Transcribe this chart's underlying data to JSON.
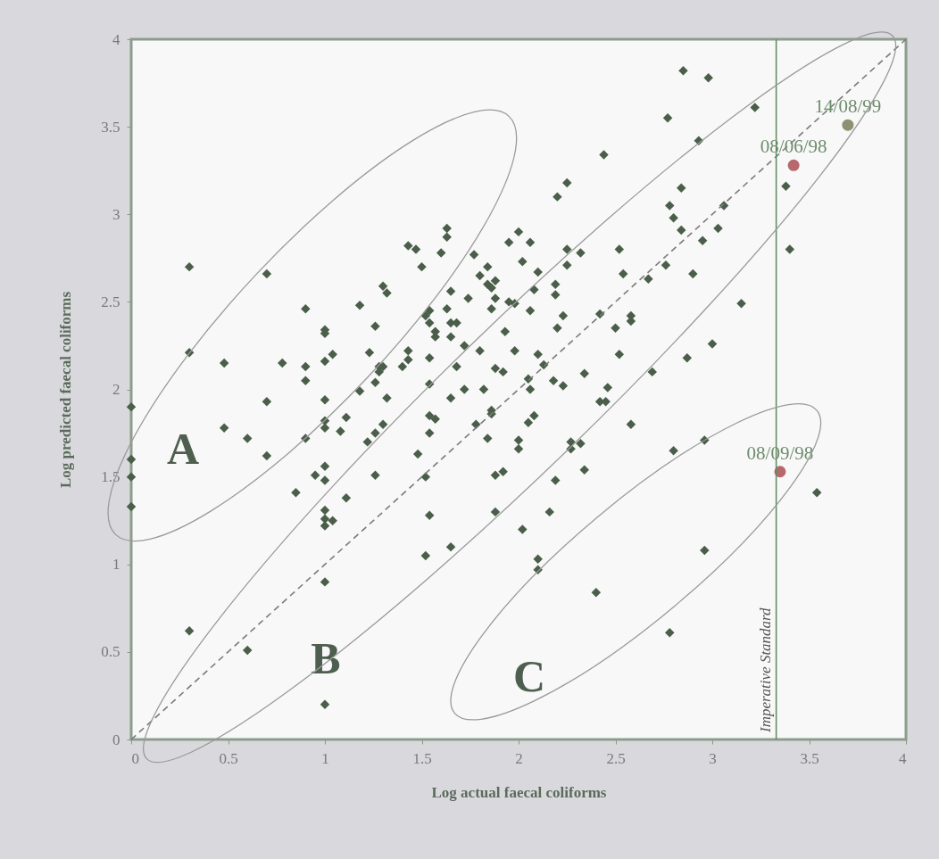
{
  "chart_data": {
    "type": "scatter",
    "xlabel": "Log actual faecal coliforms",
    "ylabel": "Log predicted faecal coliforms",
    "xlim": [
      0,
      4
    ],
    "ylim": [
      0,
      4
    ],
    "xticks": [
      0,
      0.5,
      1,
      1.5,
      2,
      2.5,
      3,
      3.5,
      4
    ],
    "yticks": [
      0,
      0.5,
      1,
      1.5,
      2,
      2.5,
      3,
      3.5,
      4
    ],
    "grid": false,
    "series": [
      {
        "marker": "diamond",
        "color": "#4a5e4a",
        "x": [
          0,
          0,
          0,
          0,
          0.3,
          0.3,
          0.3,
          0.48,
          0.48,
          0.6,
          0.6,
          0.7,
          0.7,
          0.7,
          0.78,
          0.85,
          0.9,
          0.9,
          0.9,
          0.9,
          0.95,
          1,
          1,
          1,
          1,
          1,
          1,
          1,
          1,
          1,
          1,
          1,
          1,
          1,
          1.04,
          1.04,
          1.08,
          1.11,
          1.11,
          1.18,
          1.18,
          1.22,
          1.23,
          1.26,
          1.26,
          1.26,
          1.26,
          1.28,
          1.28,
          1.3,
          1.3,
          1.3,
          1.32,
          1.32,
          1.4,
          1.43,
          1.43,
          1.43,
          1.47,
          1.48,
          1.5,
          1.52,
          1.52,
          1.52,
          1.54,
          1.54,
          1.54,
          1.54,
          1.54,
          1.54,
          1.54,
          1.57,
          1.57,
          1.57,
          1.6,
          1.63,
          1.63,
          1.63,
          1.65,
          1.65,
          1.65,
          1.65,
          1.65,
          1.68,
          1.68,
          1.72,
          1.72,
          1.74,
          1.77,
          1.78,
          1.8,
          1.8,
          1.82,
          1.84,
          1.84,
          1.84,
          1.86,
          1.86,
          1.86,
          1.86,
          1.88,
          1.88,
          1.88,
          1.88,
          1.88,
          1.92,
          1.92,
          1.93,
          1.95,
          1.95,
          1.98,
          1.98,
          2,
          2,
          2,
          2.02,
          2.02,
          2.05,
          2.05,
          2.06,
          2.06,
          2.06,
          2.08,
          2.08,
          2.1,
          2.1,
          2.1,
          2.1,
          2.13,
          2.16,
          2.18,
          2.19,
          2.19,
          2.19,
          2.2,
          2.2,
          2.23,
          2.23,
          2.25,
          2.25,
          2.25,
          2.27,
          2.27,
          2.32,
          2.32,
          2.34,
          2.34,
          2.4,
          2.42,
          2.42,
          2.44,
          2.45,
          2.46,
          2.5,
          2.52,
          2.52,
          2.54,
          2.58,
          2.58,
          2.58,
          2.67,
          2.69,
          2.76,
          2.77,
          2.78,
          2.8,
          2.8,
          2.78,
          2.85,
          2.84,
          2.84,
          2.87,
          2.9,
          2.93,
          2.95,
          2.96,
          2.96,
          2.98,
          3,
          3.03,
          3.06,
          3.15,
          3.22,
          3.38,
          3.4,
          3.54
        ],
        "values": [
          1.9,
          1.6,
          1.5,
          1.33,
          2.7,
          2.21,
          0.62,
          2.15,
          1.78,
          1.72,
          0.51,
          2.66,
          1.93,
          1.62,
          2.15,
          1.41,
          2.46,
          2.13,
          2.05,
          1.72,
          1.51,
          2.34,
          2.32,
          2.16,
          1.94,
          1.82,
          1.78,
          1.56,
          1.48,
          1.31,
          1.26,
          1.22,
          0.9,
          0.2,
          2.2,
          1.25,
          1.76,
          1.84,
          1.38,
          2.48,
          1.99,
          1.7,
          2.21,
          2.36,
          2.04,
          1.75,
          1.51,
          2.13,
          2.1,
          2.59,
          2.13,
          1.8,
          2.55,
          1.95,
          2.13,
          2.82,
          2.22,
          2.17,
          2.8,
          1.63,
          2.7,
          2.42,
          1.5,
          1.05,
          2.45,
          2.38,
          2.18,
          2.03,
          1.85,
          1.75,
          1.28,
          2.33,
          2.3,
          1.83,
          2.78,
          2.92,
          2.87,
          2.46,
          2.56,
          2.38,
          2.3,
          1.95,
          1.1,
          2.38,
          2.13,
          2.25,
          2,
          2.52,
          2.77,
          1.8,
          2.65,
          2.22,
          2,
          2.7,
          2.6,
          1.72,
          2.58,
          2.46,
          1.88,
          1.86,
          2.62,
          2.52,
          2.12,
          1.51,
          1.3,
          2.1,
          1.53,
          2.33,
          2.84,
          2.5,
          2.49,
          2.22,
          2.9,
          1.71,
          1.66,
          2.73,
          1.2,
          2.06,
          1.81,
          2.84,
          2.45,
          2,
          2.57,
          1.85,
          2.67,
          2.2,
          1.03,
          0.97,
          2.14,
          1.3,
          2.05,
          2.6,
          2.54,
          1.48,
          2.35,
          3.1,
          2.42,
          2.02,
          3.18,
          2.8,
          2.71,
          1.7,
          1.66,
          2.78,
          1.69,
          2.09,
          1.54,
          0.84,
          2.43,
          1.93,
          3.34,
          1.93,
          2.01,
          2.35,
          2.8,
          2.2,
          2.66,
          2.42,
          2.39,
          1.8,
          2.63,
          2.1,
          2.71,
          3.55,
          3.05,
          2.98,
          1.65,
          0.61,
          3.82,
          3.15,
          2.91,
          2.18,
          2.66,
          3.42,
          2.85,
          1.71,
          1.08,
          3.78,
          2.26,
          2.92,
          3.05,
          2.49,
          3.61,
          3.16,
          2.8,
          1.41
        ]
      },
      {
        "type": "line",
        "line_style": "dashed",
        "marker": "none",
        "color": "#7a7a7a",
        "x": [
          0,
          4
        ],
        "values": [
          0,
          4
        ]
      },
      {
        "type": "scatter",
        "marker": "circle",
        "x": [
          3.7,
          3.42,
          3.35
        ],
        "values": [
          3.51,
          3.28,
          1.53
        ],
        "colors": [
          "#8f8f72",
          "#b8686c",
          "#b8686c"
        ]
      }
    ],
    "ref_lines": [
      {
        "axis": "x",
        "value": 3.33,
        "label": "Imperative Standard",
        "color": "#5f8a5f"
      }
    ],
    "annotations": [
      "A",
      "B",
      "C",
      {
        "text": "14/08/99",
        "x": 3.7,
        "y": 3.51
      },
      {
        "text": "08/06/98",
        "x": 3.42,
        "y": 3.28
      },
      {
        "text": "08/09/98",
        "x": 3.35,
        "y": 1.53
      }
    ]
  }
}
